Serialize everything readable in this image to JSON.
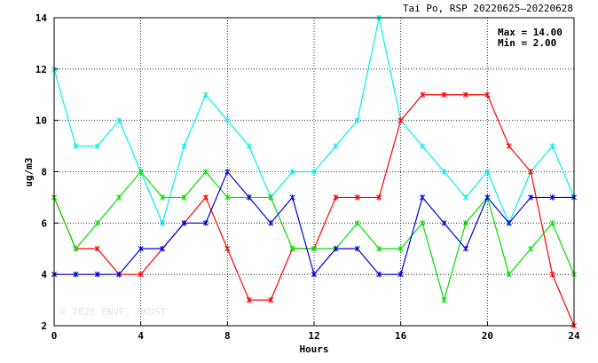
{
  "chart_data": {
    "type": "line",
    "title": "Tai Po, RSP 20220625–20220628",
    "xlabel": "Hours",
    "ylabel": "ug/m3",
    "xlim": [
      0,
      24
    ],
    "ylim": [
      2,
      14
    ],
    "xticks": [
      0,
      4,
      8,
      12,
      16,
      20,
      24
    ],
    "yticks": [
      2,
      4,
      6,
      8,
      10,
      12,
      14
    ],
    "grid": true,
    "stats": {
      "max_label": "Max = 14.00",
      "min_label": "Min =  2.00"
    },
    "watermark": "© 2025  ENVF, HKUST",
    "x": [
      0,
      1,
      2,
      3,
      4,
      5,
      6,
      7,
      8,
      9,
      10,
      11,
      12,
      13,
      14,
      15,
      16,
      17,
      18,
      19,
      20,
      21,
      22,
      23,
      24
    ],
    "series": [
      {
        "color": "#00f0f0",
        "values": [
          12,
          9,
          9,
          10,
          8,
          6,
          9,
          11,
          10,
          9,
          7,
          8,
          8,
          9,
          10,
          14,
          10,
          9,
          8,
          7,
          8,
          6,
          8,
          9,
          7
        ]
      },
      {
        "color": "#ff0000",
        "values": [
          7,
          5,
          5,
          4,
          4,
          5,
          6,
          7,
          5,
          3,
          3,
          5,
          5,
          7,
          7,
          7,
          10,
          11,
          11,
          11,
          11,
          9,
          8,
          4,
          2
        ]
      },
      {
        "color": "#00e000",
        "values": [
          7,
          5,
          6,
          7,
          8,
          7,
          7,
          8,
          7,
          7,
          7,
          5,
          5,
          5,
          6,
          5,
          5,
          6,
          3,
          6,
          7,
          4,
          5,
          6,
          4
        ]
      },
      {
        "color": "#0000dd",
        "values": [
          4,
          4,
          4,
          4,
          5,
          5,
          6,
          6,
          8,
          7,
          6,
          7,
          4,
          5,
          5,
          4,
          4,
          7,
          6,
          5,
          7,
          6,
          7,
          7,
          7
        ]
      }
    ]
  }
}
